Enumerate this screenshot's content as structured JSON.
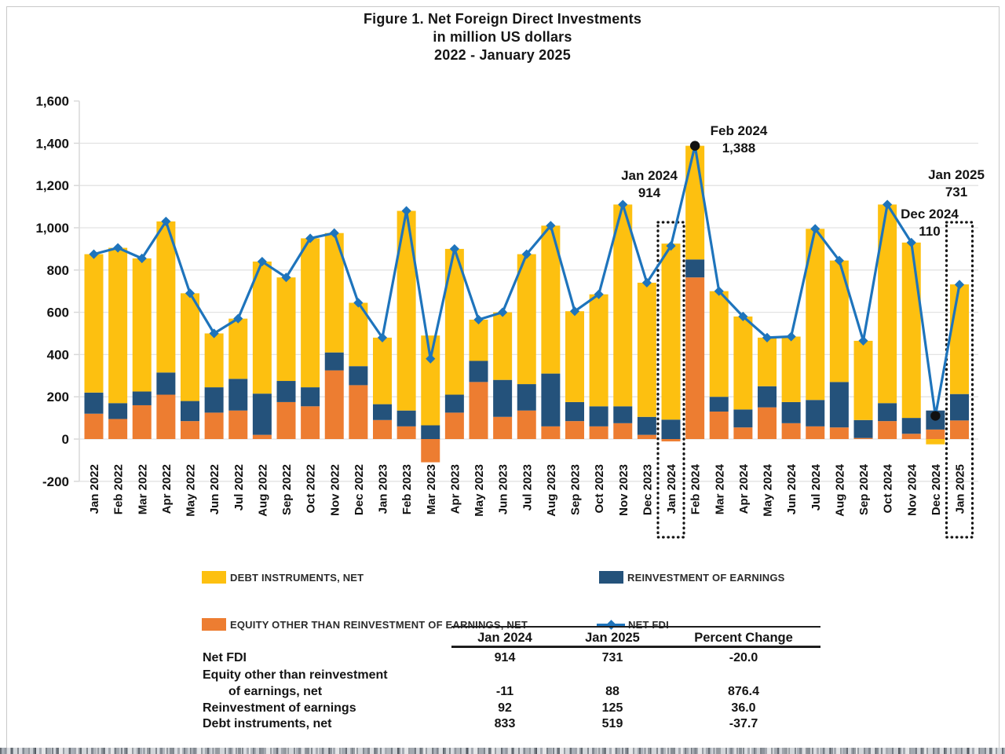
{
  "title": {
    "line1": "Figure 1. Net Foreign Direct Investments",
    "line2": "in million US dollars",
    "line3": "2022 - January 2025"
  },
  "chart_data": {
    "type": "bar",
    "subtype": "stacked-bars-with-line-overlay",
    "unit": "million US dollars",
    "ylim": [
      -200,
      1600
    ],
    "ytick_step": 200,
    "grid": true,
    "categories": [
      "Jan 2022",
      "Feb 2022",
      "Mar 2022",
      "Apr 2022",
      "May 2022",
      "Jun 2022",
      "Jul 2022",
      "Aug 2022",
      "Sep 2022",
      "Oct 2022",
      "Nov 2022",
      "Dec 2022",
      "Jan 2023",
      "Feb 2023",
      "Mar 2023",
      "Apr 2023",
      "May 2023",
      "Jun 2023",
      "Jul 2023",
      "Aug 2023",
      "Sep 2023",
      "Oct 2023",
      "Nov 2023",
      "Dec 2023",
      "Jan 2024",
      "Feb 2024",
      "Mar 2024",
      "Apr 2024",
      "May 2024",
      "Jun 2024",
      "Jul 2024",
      "Aug 2024",
      "Sep 2024",
      "Oct 2024",
      "Nov 2024",
      "Dec 2024",
      "Jan 2025"
    ],
    "series": [
      {
        "name": "EQUITY OTHER THAN REINVESTMENT OF EARNINGS, NET",
        "role": "bar-segment",
        "color": "#ED7D31",
        "values": [
          120,
          95,
          160,
          210,
          85,
          125,
          135,
          20,
          175,
          155,
          325,
          255,
          90,
          60,
          -110,
          125,
          270,
          105,
          135,
          60,
          85,
          60,
          75,
          20,
          -11,
          765,
          130,
          55,
          150,
          75,
          60,
          55,
          5,
          85,
          25,
          45,
          88
        ]
      },
      {
        "name": "REINVESTMENT OF EARNINGS",
        "role": "bar-segment",
        "color": "#24527B",
        "values": [
          100,
          75,
          65,
          105,
          95,
          120,
          150,
          195,
          100,
          90,
          85,
          90,
          75,
          75,
          65,
          85,
          100,
          175,
          125,
          250,
          90,
          95,
          80,
          85,
          92,
          85,
          70,
          85,
          100,
          100,
          125,
          215,
          85,
          85,
          75,
          90,
          125
        ]
      },
      {
        "name": "DEBT INSTRUMENTS, NET",
        "role": "bar-segment",
        "color": "#FDC010",
        "values": [
          655,
          735,
          630,
          715,
          510,
          255,
          285,
          625,
          490,
          705,
          565,
          300,
          315,
          945,
          425,
          690,
          195,
          320,
          615,
          700,
          430,
          530,
          955,
          635,
          833,
          538,
          500,
          440,
          230,
          310,
          810,
          575,
          375,
          940,
          830,
          -25,
          519
        ]
      },
      {
        "name": "NET FDI",
        "role": "line",
        "color": "#1E74BC",
        "values": [
          875,
          905,
          855,
          1030,
          690,
          500,
          570,
          840,
          765,
          950,
          975,
          645,
          480,
          1080,
          380,
          900,
          565,
          600,
          875,
          1010,
          605,
          685,
          1110,
          740,
          914,
          1388,
          700,
          580,
          480,
          485,
          995,
          845,
          465,
          1110,
          930,
          110,
          731
        ]
      }
    ],
    "annotations": [
      {
        "id": "jan2024",
        "label": "Jan 2024",
        "value_text": "914",
        "month": "Jan 2024",
        "marker": "diamond"
      },
      {
        "id": "feb2024",
        "label": "Feb 2024",
        "value_text": "1,388",
        "month": "Feb 2024",
        "marker": "black-dot"
      },
      {
        "id": "dec2024",
        "label": "Dec 2024",
        "value_text": "110",
        "month": "Dec 2024",
        "marker": "black-dot"
      },
      {
        "id": "jan2025",
        "label": "Jan 2025",
        "value_text": "731",
        "month": "Jan 2025",
        "marker": "diamond"
      }
    ],
    "highlight_boxes": [
      "Jan 2024",
      "Jan 2025"
    ]
  },
  "legend": {
    "items": [
      {
        "label": "DEBT INSTRUMENTS, NET",
        "swatch": "yellow-square"
      },
      {
        "label": "REINVESTMENT OF EARNINGS",
        "swatch": "navy-square"
      },
      {
        "label": "EQUITY OTHER THAN REINVESTMENT OF EARNINGS, NET",
        "swatch": "orange-square"
      },
      {
        "label": "NET FDI",
        "swatch": "blue-line-diamond"
      }
    ]
  },
  "summary_table": {
    "col_headers": [
      "Jan 2024",
      "Jan 2025",
      "Percent Change"
    ],
    "rows": [
      {
        "label": "Net FDI",
        "label_line2": "",
        "jan_2024": "914",
        "jan_2025": "731",
        "percent_change": "-20.0"
      },
      {
        "label": "Equity other than reinvestment",
        "label_line2": "of earnings, net",
        "jan_2024": "-11",
        "jan_2025": "88",
        "percent_change": "876.4"
      },
      {
        "label": "Reinvestment of earnings",
        "label_line2": "",
        "jan_2024": "92",
        "jan_2025": "125",
        "percent_change": "36.0"
      },
      {
        "label": "Debt instruments, net",
        "label_line2": "",
        "jan_2024": "833",
        "jan_2025": "519",
        "percent_change": "-37.7"
      }
    ]
  },
  "colors": {
    "debt_yellow": "#FDC010",
    "equity_orange": "#ED7D31",
    "reinvestment_navy": "#24527B",
    "net_fdi_blue": "#1E74BC",
    "grid": "#E3E3E3",
    "axis": "#D9D9D9",
    "text": "#141414"
  }
}
